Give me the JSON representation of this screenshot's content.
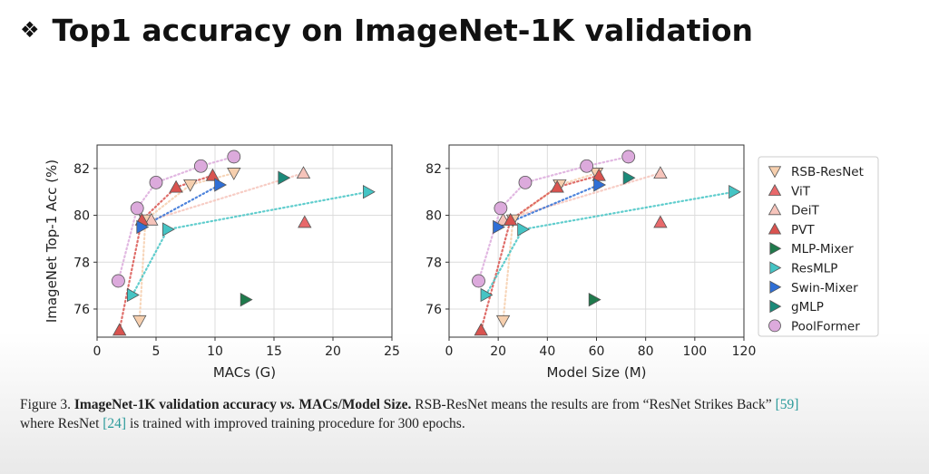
{
  "slide_title": "Top1 accuracy on ImageNet-1K validation",
  "chart_data": [
    {
      "type": "scatter",
      "xlabel": "MACs (G)",
      "ylabel": "ImageNet Top-1 Acc (%)",
      "xlim": [
        0,
        25
      ],
      "xticks": [
        0,
        5,
        10,
        15,
        20,
        25
      ],
      "ylim": [
        74.8,
        83
      ],
      "yticks": [
        76,
        78,
        80,
        82
      ],
      "grid": true,
      "series": [
        {
          "name": "RSB-ResNet",
          "color": "#f6cfae",
          "marker": "v",
          "x": [
            3.6,
            4.1,
            7.9,
            11.6
          ],
          "values": [
            75.5,
            79.8,
            81.3,
            81.8
          ]
        },
        {
          "name": "ViT",
          "color": "#e8696b",
          "marker": "^",
          "x": [
            17.6
          ],
          "values": [
            79.7
          ]
        },
        {
          "name": "DeiT",
          "color": "#f6c4bb",
          "marker": "^",
          "x": [
            4.6,
            17.5
          ],
          "values": [
            79.8,
            81.8
          ]
        },
        {
          "name": "PVT",
          "color": "#d9534f",
          "marker": "^",
          "x": [
            1.9,
            3.8,
            6.7,
            9.8
          ],
          "values": [
            75.1,
            79.8,
            81.2,
            81.7
          ]
        },
        {
          "name": "MLP-Mixer",
          "color": "#1f7a4c",
          "marker": ">",
          "x": [
            12.6
          ],
          "values": [
            76.4
          ]
        },
        {
          "name": "ResMLP",
          "color": "#44c4c4",
          "marker": ">",
          "x": [
            3.0,
            6.0,
            23.0
          ],
          "values": [
            76.6,
            79.4,
            81.0
          ]
        },
        {
          "name": "Swin-Mixer",
          "color": "#2f6fd6",
          "marker": ">",
          "x": [
            3.8,
            10.4
          ],
          "values": [
            79.5,
            81.3
          ]
        },
        {
          "name": "gMLP",
          "color": "#1b8a7a",
          "marker": ">",
          "x": [
            15.8
          ],
          "values": [
            81.6
          ]
        },
        {
          "name": "PoolFormer",
          "color": "#dcaadc",
          "marker": "o",
          "x": [
            1.8,
            3.4,
            5.0,
            8.8,
            11.6
          ],
          "values": [
            77.2,
            80.3,
            81.4,
            82.1,
            82.5
          ]
        }
      ]
    },
    {
      "type": "scatter",
      "xlabel": "Model Size (M)",
      "xlim": [
        0,
        120
      ],
      "xticks": [
        0,
        20,
        40,
        60,
        80,
        100,
        120
      ],
      "ylim": [
        74.8,
        83
      ],
      "yticks": [
        76,
        78,
        80,
        82
      ],
      "grid": true,
      "series": [
        {
          "x": [
            22,
            26,
            45,
            60
          ],
          "values": [
            75.5,
            79.8,
            81.3,
            81.8
          ]
        },
        {
          "x": [
            86
          ],
          "values": [
            79.7
          ]
        },
        {
          "x": [
            22,
            86
          ],
          "values": [
            79.8,
            81.8
          ]
        },
        {
          "x": [
            13,
            25,
            44,
            61
          ],
          "values": [
            75.1,
            79.8,
            81.2,
            81.7
          ]
        },
        {
          "x": [
            59
          ],
          "values": [
            76.4
          ]
        },
        {
          "x": [
            15,
            30,
            116
          ],
          "values": [
            76.6,
            79.4,
            81.0
          ]
        },
        {
          "x": [
            20,
            61
          ],
          "values": [
            79.5,
            81.3
          ]
        },
        {
          "x": [
            73
          ],
          "values": [
            81.6
          ]
        },
        {
          "x": [
            12,
            21,
            31,
            56,
            73
          ],
          "values": [
            77.2,
            80.3,
            81.4,
            82.1,
            82.5
          ]
        }
      ]
    }
  ],
  "caption": [
    "Figure 3.",
    "ImageNet-1K validation accuracy",
    "vs.",
    "MACs/Model Size.",
    "RSB-ResNet means the results are from “ResNet Strikes Back”",
    "[59]",
    "where ResNet",
    "[24]",
    "is trained with improved training procedure for 300 epochs."
  ]
}
